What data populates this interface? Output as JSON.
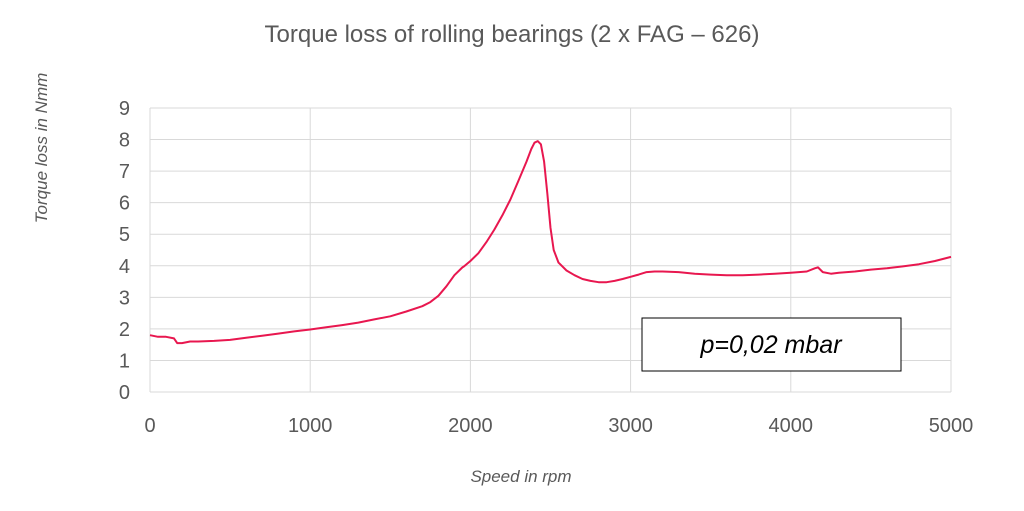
{
  "chart_data": {
    "type": "line",
    "title": "Torque loss of rolling bearings (2 x FAG – 626)",
    "xlabel": "Speed in rpm",
    "ylabel": "Torque loss in Nmm",
    "xlim": [
      0,
      5000
    ],
    "ylim": [
      0,
      9
    ],
    "x_ticks": [
      "0",
      "1000",
      "2000",
      "3000",
      "4000",
      "5000"
    ],
    "y_ticks": [
      "0",
      "1",
      "2",
      "3",
      "4",
      "5",
      "6",
      "7",
      "8",
      "9"
    ],
    "grid": true,
    "legend": "none",
    "annotation": "p=0,02 mbar",
    "series": [
      {
        "color": "#e8174f",
        "x": [
          0,
          50,
          100,
          150,
          170,
          200,
          250,
          300,
          400,
          500,
          600,
          700,
          800,
          900,
          1000,
          1100,
          1200,
          1300,
          1400,
          1500,
          1600,
          1700,
          1750,
          1800,
          1850,
          1900,
          1950,
          1960,
          2000,
          2050,
          2100,
          2150,
          2200,
          2250,
          2300,
          2350,
          2380,
          2400,
          2420,
          2440,
          2460,
          2480,
          2500,
          2520,
          2550,
          2600,
          2650,
          2700,
          2750,
          2800,
          2850,
          2900,
          2950,
          3000,
          3050,
          3100,
          3150,
          3200,
          3300,
          3400,
          3500,
          3600,
          3700,
          3800,
          3900,
          4000,
          4100,
          4150,
          4170,
          4200,
          4250,
          4300,
          4400,
          4500,
          4600,
          4700,
          4800,
          4900,
          5000
        ],
        "y": [
          1.8,
          1.75,
          1.75,
          1.7,
          1.55,
          1.55,
          1.6,
          1.6,
          1.62,
          1.65,
          1.72,
          1.78,
          1.85,
          1.92,
          1.98,
          2.05,
          2.12,
          2.2,
          2.3,
          2.4,
          2.55,
          2.72,
          2.85,
          3.05,
          3.35,
          3.7,
          3.95,
          3.98,
          4.15,
          4.4,
          4.75,
          5.15,
          5.6,
          6.1,
          6.7,
          7.3,
          7.7,
          7.9,
          7.95,
          7.85,
          7.3,
          6.3,
          5.2,
          4.5,
          4.1,
          3.85,
          3.7,
          3.58,
          3.52,
          3.48,
          3.48,
          3.52,
          3.58,
          3.65,
          3.72,
          3.8,
          3.82,
          3.82,
          3.8,
          3.75,
          3.72,
          3.7,
          3.7,
          3.72,
          3.75,
          3.78,
          3.82,
          3.92,
          3.95,
          3.8,
          3.75,
          3.78,
          3.82,
          3.88,
          3.92,
          3.98,
          4.05,
          4.15,
          4.28
        ]
      }
    ]
  }
}
